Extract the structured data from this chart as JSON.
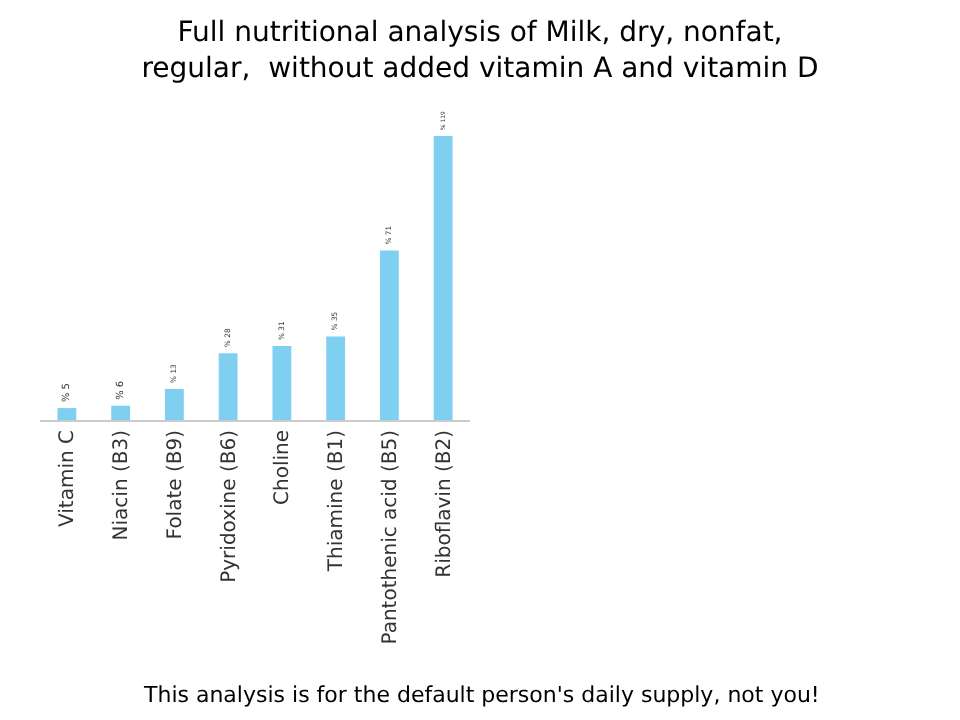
{
  "chart_data": {
    "type": "bar",
    "title": "Full nutritional analysis of Milk, dry, nonfat, regular,  without added vitamin A and vitamin D",
    "categories": [
      "Vitamin C",
      "Niacin (B3)",
      "Folate (B9)",
      "Pyridoxine (B6)",
      "Choline",
      "Thiamine (B1)",
      "Pantothenic acid (B5)",
      "Riboflavin (B2)"
    ],
    "values": [
      5,
      6,
      13,
      28,
      31,
      35,
      71,
      119
    ],
    "value_labels": [
      "% 5",
      "% 6",
      "% 13",
      "% 28",
      "% 31",
      "% 35",
      "% 71",
      "% 119"
    ],
    "color": "#7fd0f0",
    "ylim": [
      0,
      119
    ],
    "tick_labels": "x",
    "grid": false,
    "legend": false,
    "annotations": [
      "This analysis is for the default person's daily supply, not you!"
    ]
  }
}
